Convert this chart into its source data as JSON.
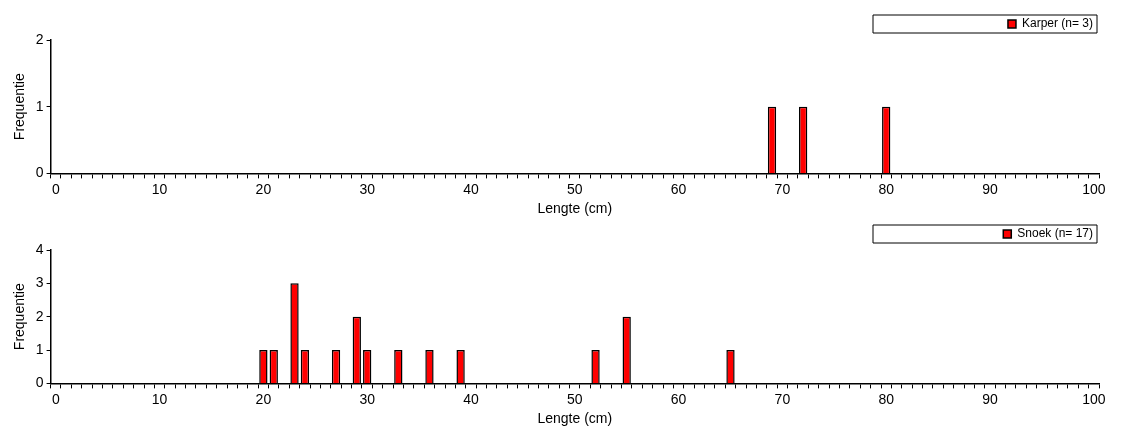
{
  "chart_data": [
    {
      "type": "bar",
      "xlabel": "Lengte (cm)",
      "ylabel": "Frequentie",
      "legend": "top right",
      "grid": false,
      "ylim": [
        0,
        2
      ],
      "yticks": [
        0,
        1,
        2
      ],
      "categories": [
        "0",
        null,
        null,
        null,
        null,
        null,
        null,
        null,
        null,
        null,
        "10",
        null,
        null,
        null,
        null,
        null,
        null,
        null,
        null,
        null,
        "20",
        null,
        null,
        null,
        null,
        null,
        null,
        null,
        null,
        null,
        "30",
        null,
        null,
        null,
        null,
        null,
        null,
        null,
        null,
        null,
        "40",
        null,
        null,
        null,
        null,
        null,
        null,
        null,
        null,
        null,
        "50",
        null,
        null,
        null,
        null,
        null,
        null,
        null,
        null,
        null,
        "60",
        null,
        null,
        null,
        null,
        null,
        null,
        null,
        null,
        null,
        "70",
        null,
        null,
        null,
        null,
        null,
        null,
        null,
        null,
        null,
        "80",
        null,
        null,
        null,
        null,
        null,
        null,
        null,
        null,
        null,
        "90",
        null,
        null,
        null,
        null,
        null,
        null,
        null,
        null,
        null,
        "100"
      ],
      "series": [
        {
          "name": "Karper (n= 3)",
          "color": "#ff0000",
          "values": [
            0,
            0,
            0,
            0,
            0,
            0,
            0,
            0,
            0,
            0,
            0,
            0,
            0,
            0,
            0,
            0,
            0,
            0,
            0,
            0,
            0,
            0,
            0,
            0,
            0,
            0,
            0,
            0,
            0,
            0,
            0,
            0,
            0,
            0,
            0,
            0,
            0,
            0,
            0,
            0,
            0,
            0,
            0,
            0,
            0,
            0,
            0,
            0,
            0,
            0,
            0,
            0,
            0,
            0,
            0,
            0,
            0,
            0,
            0,
            0,
            0,
            0,
            0,
            0,
            0,
            0,
            0,
            0,
            0,
            1,
            0,
            0,
            1,
            0,
            0,
            0,
            0,
            0,
            0,
            0,
            1,
            0,
            0,
            0,
            0,
            0,
            0,
            0,
            0,
            0,
            0,
            0,
            0,
            0,
            0,
            0,
            0,
            0,
            0,
            0,
            0
          ]
        }
      ]
    },
    {
      "type": "bar",
      "xlabel": "Lengte (cm)",
      "ylabel": "Frequentie",
      "legend": "top right",
      "grid": false,
      "ylim": [
        0,
        4
      ],
      "yticks": [
        0,
        1,
        2,
        3,
        4
      ],
      "categories": [
        "0",
        null,
        null,
        null,
        null,
        null,
        null,
        null,
        null,
        null,
        "10",
        null,
        null,
        null,
        null,
        null,
        null,
        null,
        null,
        null,
        "20",
        null,
        null,
        null,
        null,
        null,
        null,
        null,
        null,
        null,
        "30",
        null,
        null,
        null,
        null,
        null,
        null,
        null,
        null,
        null,
        "40",
        null,
        null,
        null,
        null,
        null,
        null,
        null,
        null,
        null,
        "50",
        null,
        null,
        null,
        null,
        null,
        null,
        null,
        null,
        null,
        "60",
        null,
        null,
        null,
        null,
        null,
        null,
        null,
        null,
        null,
        "70",
        null,
        null,
        null,
        null,
        null,
        null,
        null,
        null,
        null,
        "80",
        null,
        null,
        null,
        null,
        null,
        null,
        null,
        null,
        null,
        "90",
        null,
        null,
        null,
        null,
        null,
        null,
        null,
        null,
        null,
        "100"
      ],
      "series": [
        {
          "name": "Snoek (n= 17)",
          "color": "#ff0000",
          "values": [
            0,
            0,
            0,
            0,
            0,
            0,
            0,
            0,
            0,
            0,
            0,
            0,
            0,
            0,
            0,
            0,
            0,
            0,
            0,
            0,
            1,
            1,
            0,
            3,
            1,
            0,
            0,
            1,
            0,
            2,
            1,
            0,
            0,
            1,
            0,
            0,
            1,
            0,
            0,
            1,
            0,
            0,
            0,
            0,
            0,
            0,
            0,
            0,
            0,
            0,
            0,
            0,
            1,
            0,
            0,
            2,
            0,
            0,
            0,
            0,
            0,
            0,
            0,
            0,
            0,
            1,
            0,
            0,
            0,
            0,
            0,
            0,
            0,
            0,
            0,
            0,
            0,
            0,
            0,
            0,
            0,
            0,
            0,
            0,
            0,
            0,
            0,
            0,
            0,
            0,
            0,
            0,
            0,
            0,
            0,
            0,
            0,
            0,
            0,
            0,
            0
          ]
        }
      ]
    }
  ]
}
